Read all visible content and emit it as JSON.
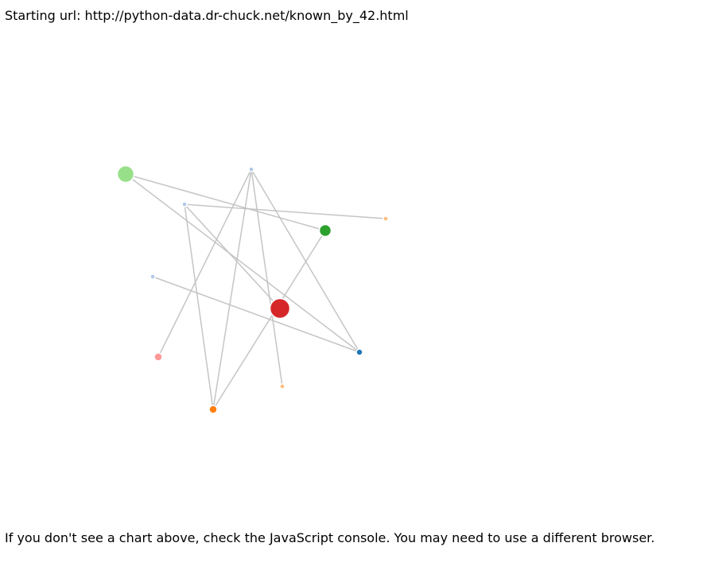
{
  "header": {
    "starting_url_text": "Starting url: http://python-data.dr-chuck.net/known_by_42.html"
  },
  "footer": {
    "note": "If you don't see a chart above, check the JavaScript console. You may need to use a different browser."
  },
  "graph": {
    "nodes": [
      {
        "id": "n-big-red",
        "color": "#d62728",
        "rank": 5
      },
      {
        "id": "n-green-large",
        "color": "#98df8a",
        "rank": 4
      },
      {
        "id": "n-dark-green",
        "color": "#2ca02c",
        "rank": 3
      },
      {
        "id": "n-orange",
        "color": "#ff7f0e",
        "rank": 2
      },
      {
        "id": "n-pink",
        "color": "#ff9896",
        "rank": 2
      },
      {
        "id": "n-blue",
        "color": "#1f77b4",
        "rank": 1
      },
      {
        "id": "n-lightblue-top",
        "color": "#aec7e8",
        "rank": 0
      },
      {
        "id": "n-lightblue-left",
        "color": "#aec7e8",
        "rank": 0
      },
      {
        "id": "n-lightblue-mid",
        "color": "#aec7e8",
        "rank": 0
      },
      {
        "id": "n-peach-right",
        "color": "#ffbb78",
        "rank": 0
      },
      {
        "id": "n-peach-bottom",
        "color": "#ffbb78",
        "rank": 0
      }
    ],
    "links": [
      [
        "n-green-large",
        "n-dark-green"
      ],
      [
        "n-green-large",
        "n-blue"
      ],
      [
        "n-lightblue-top",
        "n-pink"
      ],
      [
        "n-lightblue-top",
        "n-orange"
      ],
      [
        "n-lightblue-top",
        "n-blue"
      ],
      [
        "n-lightblue-top",
        "n-peach-bottom"
      ],
      [
        "n-lightblue-mid",
        "n-peach-right"
      ],
      [
        "n-lightblue-mid",
        "n-orange"
      ],
      [
        "n-lightblue-mid",
        "n-big-red"
      ],
      [
        "n-lightblue-left",
        "n-blue"
      ],
      [
        "n-dark-green",
        "n-orange"
      ]
    ]
  }
}
